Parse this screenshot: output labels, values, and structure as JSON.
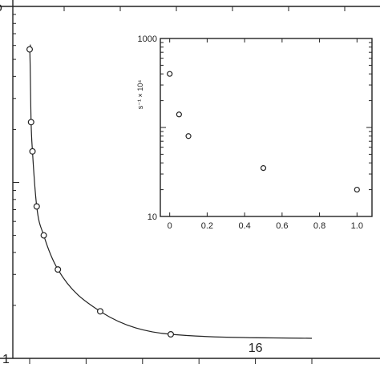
{
  "chart_data": [
    {
      "type": "scatter",
      "title": "",
      "xlabel": "",
      "ylabel": "",
      "log_y": true,
      "grid": false,
      "xlim": [
        0,
        20
      ],
      "ylim": [
        1,
        100
      ],
      "x_tick_labels": [
        {
          "x": 16,
          "label": "16"
        }
      ],
      "y_tick_labels": [
        {
          "y": 1,
          "label": "1"
        }
      ],
      "series": [
        {
          "x": [
            0,
            0.1,
            0.2,
            0.5,
            1,
            2,
            5,
            10
          ],
          "y": [
            57,
            22,
            15,
            7.3,
            5,
            3.2,
            1.85,
            1.37
          ]
        }
      ]
    },
    {
      "type": "scatter",
      "title": "",
      "xlabel": "",
      "ylabel": "s⁻¹ × 10⁴",
      "log_y": true,
      "grid": false,
      "xlim": [
        -0.05,
        1.08
      ],
      "ylim": [
        10,
        1000
      ],
      "x_ticks": [
        0,
        0.2,
        0.4,
        0.6,
        0.8,
        1.0
      ],
      "x_tick_labels": [
        "0",
        "0.2",
        "0.4",
        "0.6",
        "0.8",
        "1.0"
      ],
      "y_ticks": [
        10,
        1000
      ],
      "y_tick_labels": [
        "10",
        "1000"
      ],
      "series": [
        {
          "x": [
            0,
            0.05,
            0.1,
            0.5,
            1.0
          ],
          "y": [
            400,
            140,
            80,
            35,
            20
          ]
        }
      ]
    }
  ]
}
